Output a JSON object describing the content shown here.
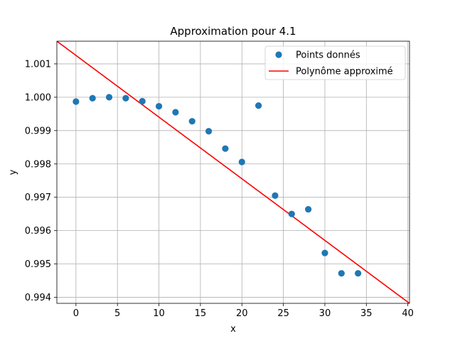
{
  "chart_data": {
    "type": "scatter",
    "title": "Approximation pour 4.1",
    "xlabel": "x",
    "ylabel": "y",
    "xlim": [
      -2.3,
      40.2
    ],
    "ylim": [
      0.99382,
      1.00168
    ],
    "grid": true,
    "legend_position": "top-right",
    "x_ticks": [
      0,
      5,
      10,
      15,
      20,
      25,
      30,
      35,
      40
    ],
    "x_tick_labels": [
      "0",
      "5",
      "10",
      "15",
      "20",
      "25",
      "30",
      "35",
      "40"
    ],
    "y_ticks": [
      0.994,
      0.995,
      0.996,
      0.997,
      0.998,
      0.999,
      1.0,
      1.001
    ],
    "y_tick_labels": [
      "0.994",
      "0.995",
      "0.996",
      "0.997",
      "0.998",
      "0.999",
      "1.000",
      "1.001"
    ],
    "series": [
      {
        "name": "Points donnés",
        "kind": "scatter",
        "color": "#1f77b4",
        "x": [
          0,
          2,
          4,
          6,
          8,
          10,
          12,
          14,
          16,
          18,
          20,
          22,
          24,
          26,
          28,
          30,
          32,
          34
        ],
        "y": [
          0.99987,
          0.99997,
          1.0,
          0.99997,
          0.99988,
          0.99973,
          0.99955,
          0.99928,
          0.99898,
          0.99846,
          0.99806,
          0.99975,
          0.99705,
          0.9965,
          0.99664,
          0.99533,
          0.99472,
          0.99472
        ]
      },
      {
        "name": "Polynôme approximé",
        "kind": "line",
        "color": "#ff0000",
        "x": [
          -2.3,
          40.2
        ],
        "y": [
          1.00168,
          0.99382
        ]
      }
    ]
  }
}
